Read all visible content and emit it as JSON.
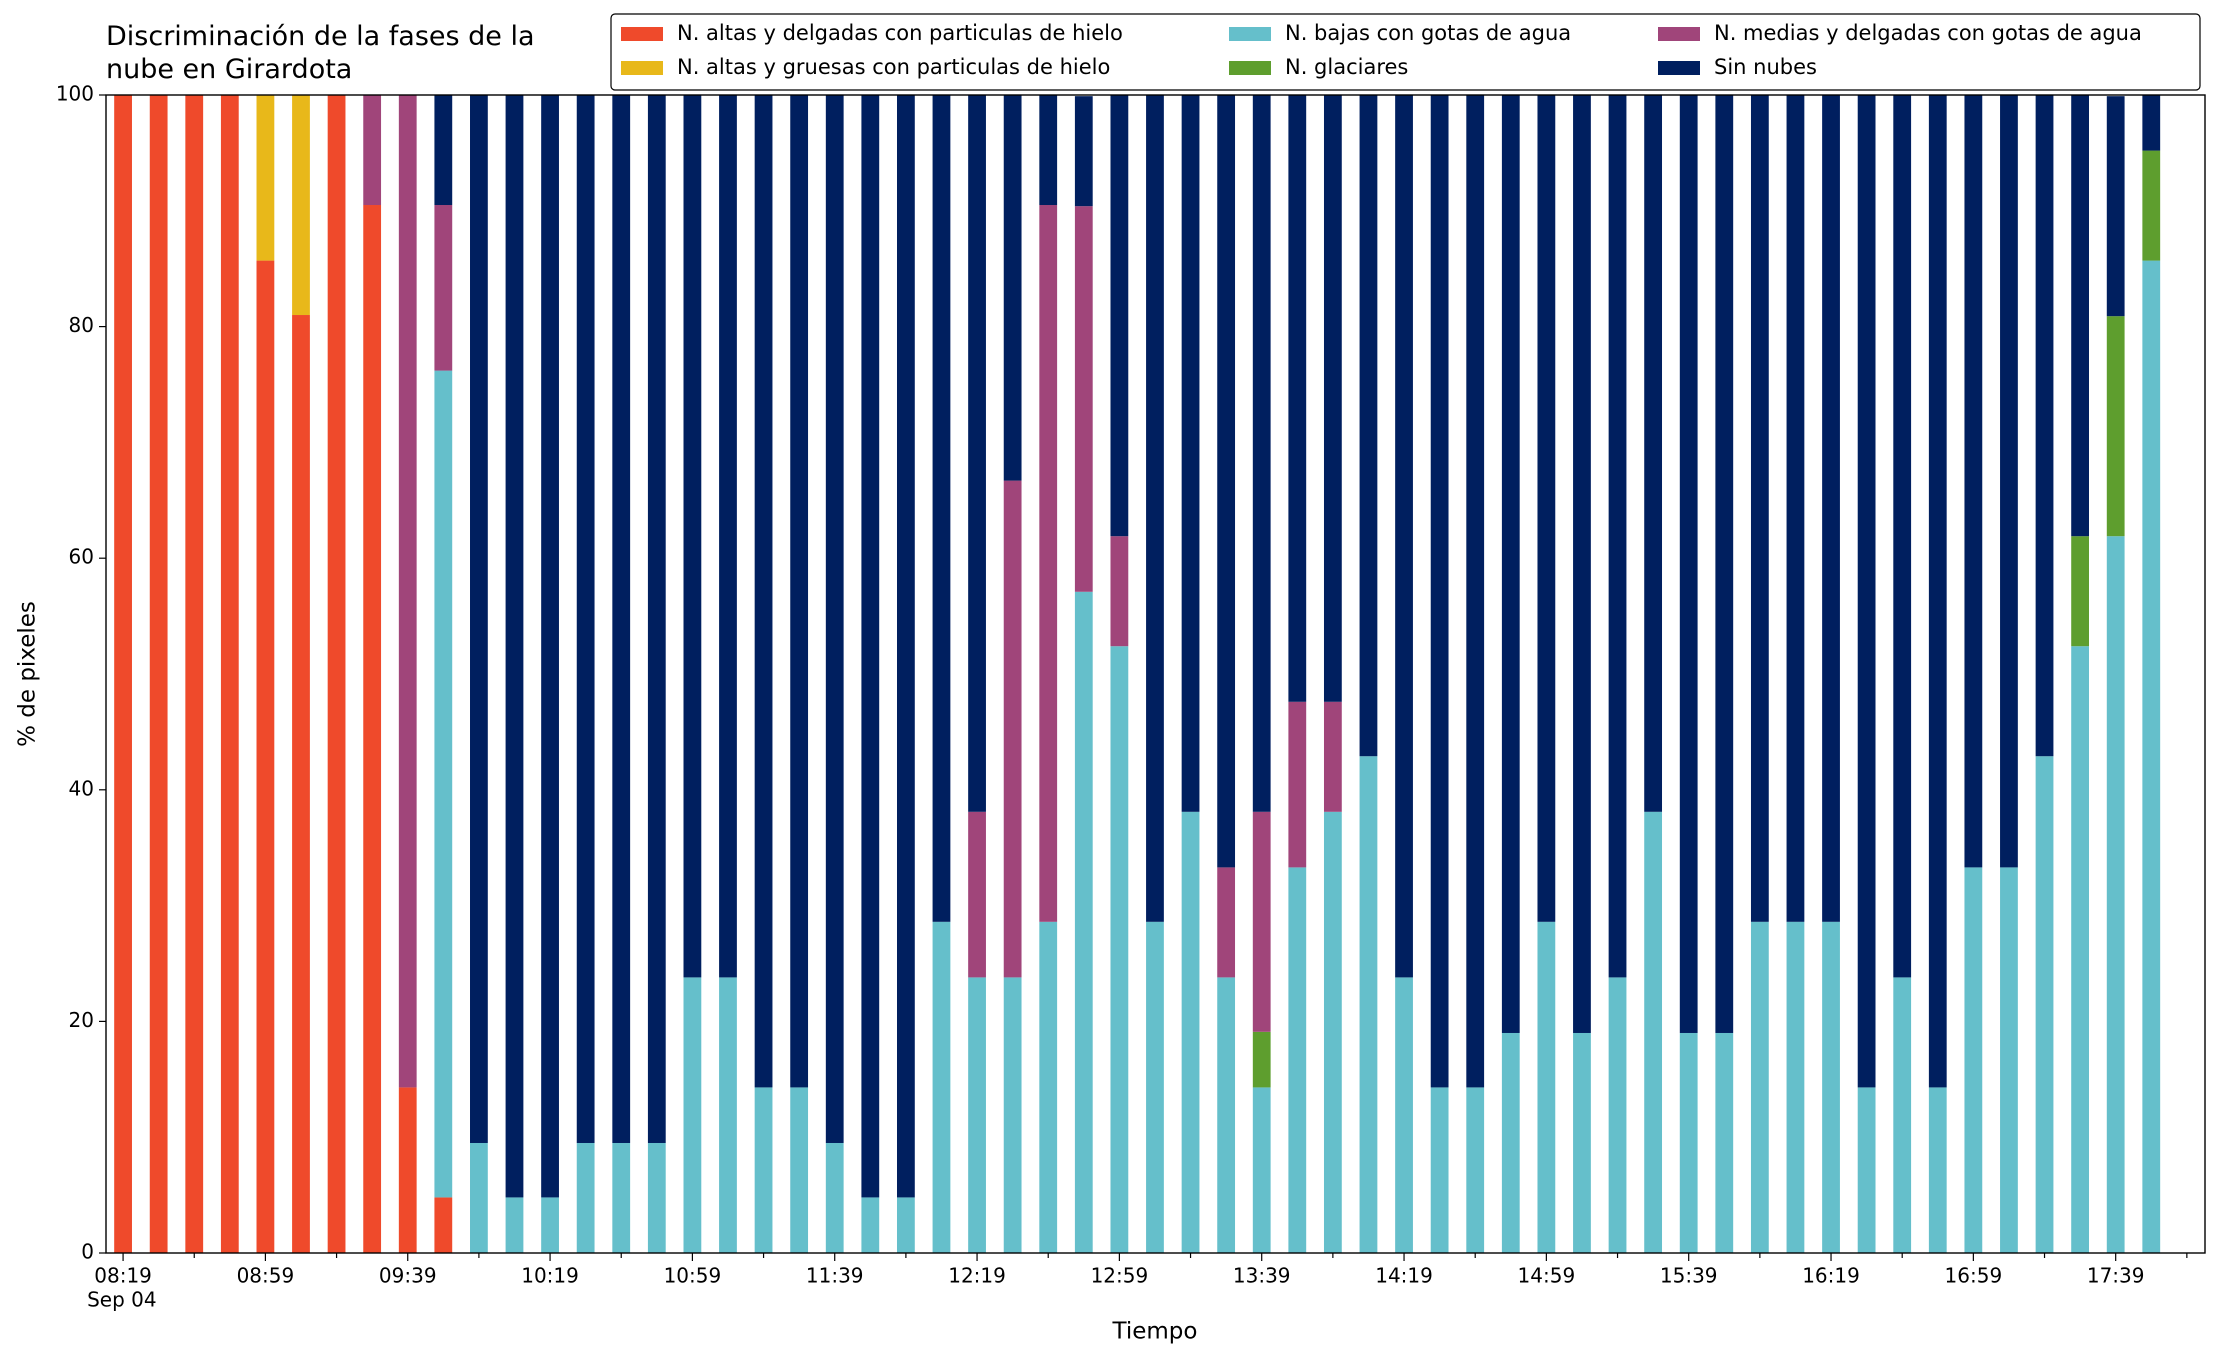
{
  "chart_data": {
    "type": "stacked_bar",
    "title": "Discriminación de la fases de la nube en Girardota",
    "xlabel": "Tiempo",
    "ylabel": "% de pixeles",
    "x_tick_date": "Sep 04",
    "categories": [
      "08:19",
      null,
      null,
      null,
      "08:59",
      null,
      null,
      null,
      "09:39",
      null,
      null,
      null,
      "10:19",
      null,
      null,
      null,
      "10:59",
      null,
      null,
      null,
      "11:39",
      null,
      null,
      null,
      "12:19",
      null,
      null,
      null,
      "12:59",
      null,
      null,
      null,
      "13:39",
      null,
      null,
      null,
      "14:19",
      null,
      null,
      null,
      "14:59",
      null,
      null,
      null,
      "15:39",
      null,
      null,
      null,
      "16:19",
      null,
      null,
      null,
      "16:59",
      null,
      null,
      null,
      "17:39",
      null
    ],
    "ylim": [
      0,
      100
    ],
    "yticks": [
      0,
      20,
      40,
      60,
      80,
      100
    ],
    "legend": "upper right",
    "series": [
      {
        "name": "N. altas y delgadas con particulas de hielo",
        "color": "#ef4a2b",
        "values": [
          100,
          100,
          100,
          100,
          85.7,
          81.0,
          100,
          90.5,
          14.3,
          4.8,
          0,
          0,
          0,
          0,
          0,
          0,
          0,
          0,
          0,
          0,
          0,
          0,
          0,
          0,
          0,
          0,
          0,
          0,
          0,
          0,
          0,
          0,
          0,
          0,
          0,
          0,
          0,
          0,
          0,
          0,
          0,
          0,
          0,
          0,
          0,
          0,
          0,
          0,
          0,
          0,
          0,
          0,
          0,
          0,
          0,
          0,
          0,
          0
        ]
      },
      {
        "name": "N. altas y gruesas con particulas de hielo",
        "color": "#e8b81a",
        "values": [
          0,
          0,
          0,
          0,
          14.3,
          19.0,
          0,
          0,
          0,
          0,
          0,
          0,
          0,
          0,
          0,
          0,
          0,
          0,
          0,
          0,
          0,
          0,
          0,
          0,
          0,
          0,
          0,
          0,
          0,
          0,
          0,
          0,
          0,
          0,
          0,
          0,
          0,
          0,
          0,
          0,
          0,
          0,
          0,
          0,
          0,
          0,
          0,
          0,
          0,
          0,
          0,
          0,
          0,
          0,
          0,
          0,
          0,
          0
        ]
      },
      {
        "name": "N. bajas con gotas de agua",
        "color": "#65bfcb",
        "values": [
          0,
          0,
          0,
          0,
          0,
          0,
          0,
          0,
          0,
          71.4,
          9.5,
          4.8,
          4.8,
          9.5,
          9.5,
          9.5,
          23.8,
          23.8,
          14.3,
          14.3,
          9.5,
          4.8,
          4.8,
          28.6,
          23.8,
          23.8,
          28.6,
          57.1,
          52.4,
          28.6,
          38.1,
          23.8,
          14.3,
          33.3,
          38.1,
          42.9,
          23.8,
          14.3,
          14.3,
          19.0,
          28.6,
          19.0,
          23.8,
          38.1,
          19.0,
          19.0,
          28.6,
          28.6,
          28.6,
          14.3,
          23.8,
          14.3,
          33.3,
          33.3,
          42.9,
          52.4,
          61.9,
          85.7
        ]
      },
      {
        "name": "N. glaciares",
        "color": "#5e9e2e",
        "values": [
          0,
          0,
          0,
          0,
          0,
          0,
          0,
          0,
          0,
          0,
          0,
          0,
          0,
          0,
          0,
          0,
          0,
          0,
          0,
          0,
          0,
          0,
          0,
          0,
          0,
          0,
          0,
          0,
          0,
          0,
          0,
          0,
          4.8,
          0,
          0,
          0,
          0,
          0,
          0,
          0,
          0,
          0,
          0,
          0,
          0,
          0,
          0,
          0,
          0,
          0,
          0,
          0,
          0,
          0,
          0,
          9.5,
          19.0,
          9.5
        ]
      },
      {
        "name": "N. medias y delgadas con gotas de agua",
        "color": "#a0457a",
        "values": [
          0,
          0,
          0,
          0,
          0,
          0,
          0,
          9.5,
          85.7,
          14.3,
          0,
          0,
          0,
          0,
          0,
          0,
          0,
          0,
          0,
          0,
          0,
          0,
          0,
          0,
          14.3,
          42.9,
          61.9,
          33.3,
          9.5,
          0,
          0,
          9.5,
          19.0,
          14.3,
          9.5,
          0,
          0,
          0,
          0,
          0,
          0,
          0,
          0,
          0,
          0,
          0,
          0,
          0,
          0,
          0,
          0,
          0,
          0,
          0,
          0,
          0,
          0,
          0
        ]
      },
      {
        "name": "Sin nubes",
        "color": "#001f5f",
        "values": [
          0,
          0,
          0,
          0,
          0,
          0,
          0,
          0,
          0,
          9.5,
          90.5,
          95.2,
          95.2,
          90.5,
          90.5,
          90.5,
          76.2,
          76.2,
          85.7,
          85.7,
          90.5,
          95.2,
          95.2,
          71.4,
          61.9,
          33.3,
          9.5,
          9.5,
          38.1,
          71.4,
          61.9,
          66.7,
          61.9,
          52.4,
          52.4,
          57.1,
          76.2,
          85.7,
          85.7,
          81.0,
          71.4,
          81.0,
          76.2,
          61.9,
          81.0,
          81.0,
          71.4,
          71.4,
          71.4,
          85.7,
          76.2,
          85.7,
          66.7,
          66.7,
          57.1,
          38.1,
          19.0,
          4.8
        ]
      }
    ]
  }
}
